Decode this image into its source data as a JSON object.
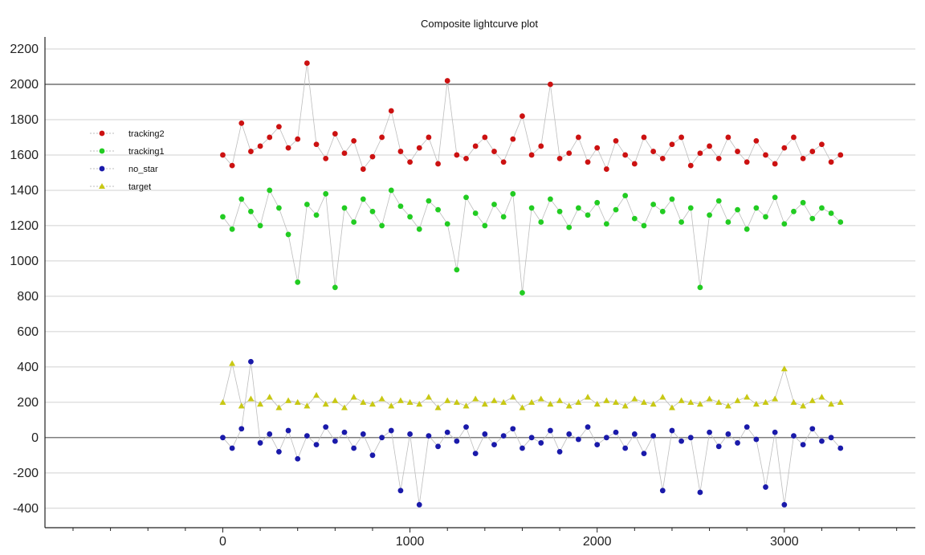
{
  "window": {
    "title": "Composite lightcurve plot"
  },
  "chart_data": {
    "type": "scatter",
    "title": "Composite lightcurve plot",
    "xlabel": "",
    "ylabel": "",
    "xlim": [
      -950,
      3700
    ],
    "ylim": [
      -510,
      2250
    ],
    "x_ticks": [
      0,
      1000,
      2000,
      3000
    ],
    "y_ticks": [
      -400,
      -200,
      0,
      200,
      400,
      600,
      800,
      1000,
      1200,
      1400,
      1600,
      1800,
      2000,
      2200
    ],
    "grid": true,
    "zero_lines": [
      0,
      2000
    ],
    "legend_position": "top-left",
    "x_range_observed": [
      0,
      3320
    ],
    "series": [
      {
        "name": "tracking2",
        "color": "#cc1111",
        "marker": "circle",
        "x": [
          0,
          50,
          100,
          150,
          200,
          250,
          300,
          350,
          400,
          450,
          500,
          550,
          600,
          650,
          700,
          750,
          800,
          850,
          900,
          950,
          1000,
          1050,
          1100,
          1150,
          1200,
          1250,
          1300,
          1350,
          1400,
          1450,
          1500,
          1550,
          1600,
          1650,
          1700,
          1750,
          1800,
          1850,
          1900,
          1950,
          2000,
          2050,
          2100,
          2150,
          2200,
          2250,
          2300,
          2350,
          2400,
          2450,
          2500,
          2550,
          2600,
          2650,
          2700,
          2750,
          2800,
          2850,
          2900,
          2950,
          3000,
          3050,
          3100,
          3150,
          3200,
          3250,
          3300
        ],
        "y": [
          1600,
          1540,
          1780,
          1620,
          1650,
          1700,
          1760,
          1640,
          1690,
          2120,
          1660,
          1580,
          1720,
          1610,
          1680,
          1520,
          1590,
          1700,
          1850,
          1620,
          1560,
          1640,
          1700,
          1550,
          2020,
          1600,
          1580,
          1650,
          1700,
          1620,
          1560,
          1690,
          1820,
          1600,
          1650,
          2000,
          1580,
          1610,
          1700,
          1560,
          1640,
          1520,
          1680,
          1600,
          1550,
          1700,
          1620,
          1580,
          1660,
          1700,
          1540,
          1610,
          1650,
          1580,
          1700,
          1620,
          1560,
          1680,
          1600,
          1550,
          1640,
          1700,
          1580,
          1620,
          1660,
          1560,
          1600
        ]
      },
      {
        "name": "tracking1",
        "color": "#22cc22",
        "marker": "circle",
        "x": [
          0,
          50,
          100,
          150,
          200,
          250,
          300,
          350,
          400,
          450,
          500,
          550,
          600,
          650,
          700,
          750,
          800,
          850,
          900,
          950,
          1000,
          1050,
          1100,
          1150,
          1200,
          1250,
          1300,
          1350,
          1400,
          1450,
          1500,
          1550,
          1600,
          1650,
          1700,
          1750,
          1800,
          1850,
          1900,
          1950,
          2000,
          2050,
          2100,
          2150,
          2200,
          2250,
          2300,
          2350,
          2400,
          2450,
          2500,
          2550,
          2600,
          2650,
          2700,
          2750,
          2800,
          2850,
          2900,
          2950,
          3000,
          3050,
          3100,
          3150,
          3200,
          3250,
          3300
        ],
        "y": [
          1250,
          1180,
          1350,
          1280,
          1200,
          1400,
          1300,
          1150,
          880,
          1320,
          1260,
          1380,
          850,
          1300,
          1220,
          1350,
          1280,
          1200,
          1400,
          1310,
          1250,
          1180,
          1340,
          1290,
          1210,
          950,
          1360,
          1270,
          1200,
          1320,
          1250,
          1380,
          820,
          1300,
          1220,
          1350,
          1280,
          1190,
          1300,
          1260,
          1330,
          1210,
          1290,
          1370,
          1240,
          1200,
          1320,
          1280,
          1350,
          1220,
          1300,
          850,
          1260,
          1340,
          1220,
          1290,
          1180,
          1300,
          1250,
          1360,
          1210,
          1280,
          1330,
          1240,
          1300,
          1270,
          1220
        ]
      },
      {
        "name": "no_star",
        "color": "#1a1aaa",
        "marker": "circle",
        "x": [
          0,
          50,
          100,
          150,
          200,
          250,
          300,
          350,
          400,
          450,
          500,
          550,
          600,
          650,
          700,
          750,
          800,
          850,
          900,
          950,
          1000,
          1050,
          1100,
          1150,
          1200,
          1250,
          1300,
          1350,
          1400,
          1450,
          1500,
          1550,
          1600,
          1650,
          1700,
          1750,
          1800,
          1850,
          1900,
          1950,
          2000,
          2050,
          2100,
          2150,
          2200,
          2250,
          2300,
          2350,
          2400,
          2450,
          2500,
          2550,
          2600,
          2650,
          2700,
          2750,
          2800,
          2850,
          2900,
          2950,
          3000,
          3050,
          3100,
          3150,
          3200,
          3250,
          3300
        ],
        "y": [
          0,
          -60,
          50,
          430,
          -30,
          20,
          -80,
          40,
          -120,
          10,
          -40,
          60,
          -20,
          30,
          -60,
          20,
          -100,
          0,
          40,
          -300,
          20,
          -380,
          10,
          -50,
          30,
          -20,
          60,
          -90,
          20,
          -40,
          10,
          50,
          -60,
          0,
          -30,
          40,
          -80,
          20,
          -10,
          60,
          -40,
          0,
          30,
          -60,
          20,
          -90,
          10,
          -300,
          40,
          -20,
          0,
          -310,
          30,
          -50,
          20,
          -30,
          60,
          -10,
          -280,
          30,
          -380,
          10,
          -40,
          50,
          -20,
          0,
          -60
        ]
      },
      {
        "name": "target",
        "color": "#c8c814",
        "marker": "triangle",
        "x": [
          0,
          50,
          100,
          150,
          200,
          250,
          300,
          350,
          400,
          450,
          500,
          550,
          600,
          650,
          700,
          750,
          800,
          850,
          900,
          950,
          1000,
          1050,
          1100,
          1150,
          1200,
          1250,
          1300,
          1350,
          1400,
          1450,
          1500,
          1550,
          1600,
          1650,
          1700,
          1750,
          1800,
          1850,
          1900,
          1950,
          2000,
          2050,
          2100,
          2150,
          2200,
          2250,
          2300,
          2350,
          2400,
          2450,
          2500,
          2550,
          2600,
          2650,
          2700,
          2750,
          2800,
          2850,
          2900,
          2950,
          3000,
          3050,
          3100,
          3150,
          3200,
          3250,
          3300
        ],
        "y": [
          200,
          420,
          180,
          220,
          190,
          230,
          170,
          210,
          200,
          180,
          240,
          190,
          210,
          170,
          230,
          200,
          190,
          220,
          180,
          210,
          200,
          190,
          230,
          170,
          210,
          200,
          180,
          220,
          190,
          210,
          200,
          230,
          170,
          200,
          220,
          190,
          210,
          180,
          200,
          230,
          190,
          210,
          200,
          180,
          220,
          200,
          190,
          230,
          170,
          210,
          200,
          190,
          220,
          200,
          180,
          210,
          230,
          190,
          200,
          220,
          390,
          200,
          180,
          210,
          230,
          190,
          200
        ]
      }
    ]
  }
}
